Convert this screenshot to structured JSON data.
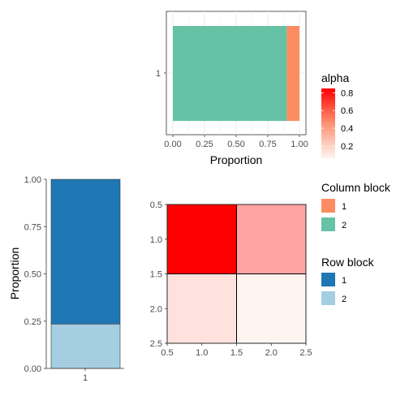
{
  "colors": {
    "col_block_1": "#FC8D62",
    "col_block_2": "#66C2A5",
    "row_block_1": "#1F78B4",
    "row_block_2": "#A6CEE3",
    "alpha_low": "#FFF5F0",
    "alpha_high": "#FF0000",
    "grid": "#ebebeb",
    "panel_border": "#333333"
  },
  "chart_data": [
    {
      "id": "top",
      "type": "bar",
      "orientation": "horizontal",
      "stacked": true,
      "categories": [
        "1"
      ],
      "series": [
        {
          "name": "2",
          "values": [
            0.9
          ]
        },
        {
          "name": "1",
          "values": [
            0.1
          ]
        }
      ],
      "xlabel": "Proportion",
      "xlim": [
        0,
        1
      ],
      "xticks": [
        "0.00",
        "0.25",
        "0.50",
        "0.75",
        "1.00"
      ],
      "grid": true
    },
    {
      "id": "left",
      "type": "bar",
      "orientation": "vertical",
      "stacked": true,
      "categories": [
        "1"
      ],
      "series": [
        {
          "name": "2",
          "values": [
            0.235
          ]
        },
        {
          "name": "1",
          "values": [
            0.765
          ]
        }
      ],
      "ylabel": "Proportion",
      "ylim": [
        0,
        1
      ],
      "yticks": [
        "0.00",
        "0.25",
        "0.50",
        "0.75",
        "1.00"
      ],
      "grid": false
    },
    {
      "id": "heat",
      "type": "heatmap",
      "rows": [
        1,
        2
      ],
      "cols": [
        1,
        2
      ],
      "values": [
        [
          0.85,
          0.32
        ],
        [
          0.12,
          0.06
        ]
      ],
      "xlim": [
        0.5,
        2.5
      ],
      "ylim": [
        0.5,
        2.5
      ],
      "xticks": [
        "0.5",
        "1.0",
        "1.5",
        "2.0",
        "2.5"
      ],
      "yticks": [
        "0.5",
        "1.0",
        "1.5",
        "2.0",
        "2.5"
      ],
      "y_reversed": true
    }
  ],
  "legends": {
    "alpha": {
      "title": "alpha",
      "min": 0.06,
      "max": 0.85,
      "ticks": [
        "0.8",
        "0.6",
        "0.4",
        "0.2"
      ]
    },
    "column_block": {
      "title": "Column block",
      "items": [
        {
          "label": "1",
          "color": "#FC8D62"
        },
        {
          "label": "2",
          "color": "#66C2A5"
        }
      ]
    },
    "row_block": {
      "title": "Row block",
      "items": [
        {
          "label": "1",
          "color": "#1F78B4"
        },
        {
          "label": "2",
          "color": "#A6CEE3"
        }
      ]
    }
  }
}
